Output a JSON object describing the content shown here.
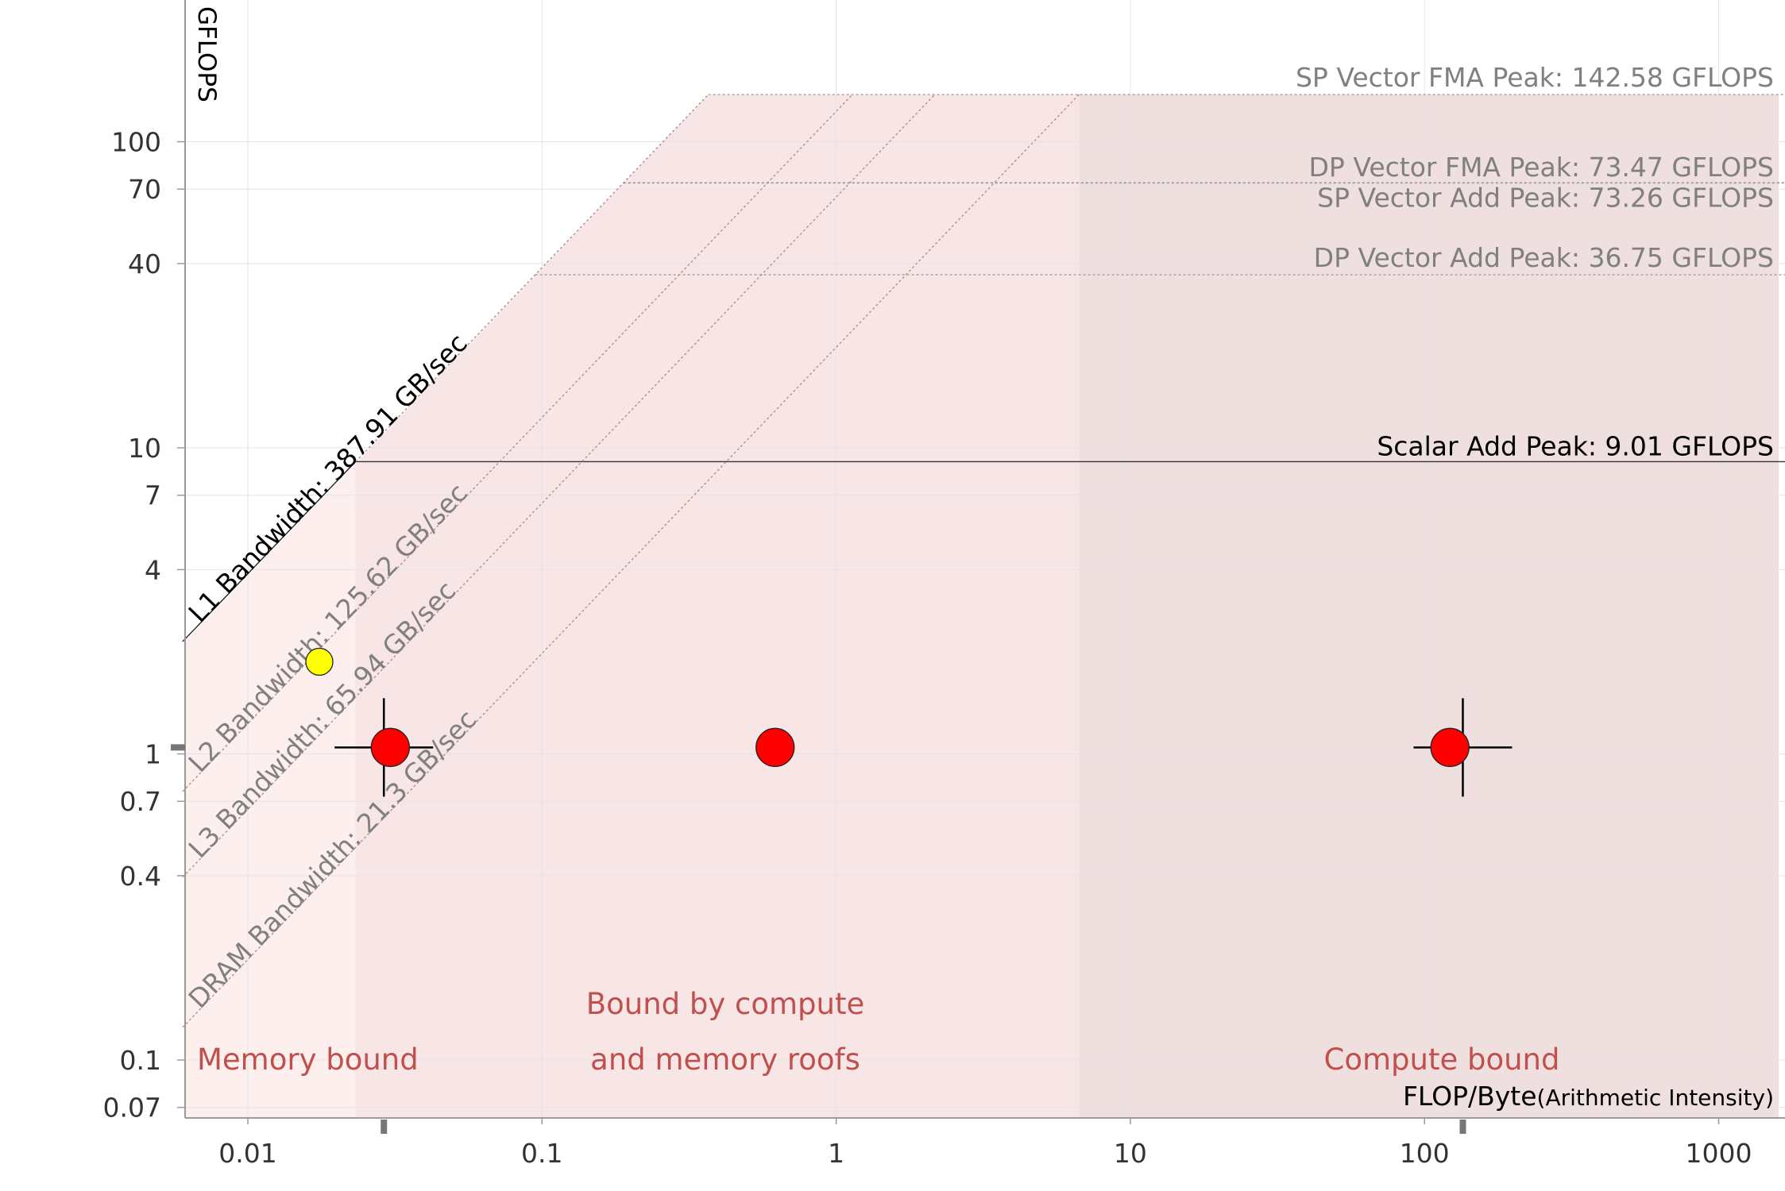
{
  "chart_data": {
    "type": "scatter",
    "subtype": "roofline",
    "xlabel": "FLOP/Byte",
    "xlabel_suffix": "(Arithmetic Intensity)",
    "ylabel": "GFLOPS",
    "x_scale": "log",
    "y_scale": "log",
    "xlim": [
      0.006,
      1600
    ],
    "ylim": [
      0.065,
      800
    ],
    "x_ticks": [
      {
        "value": 0.01,
        "label": "0.01"
      },
      {
        "value": 0.1,
        "label": "0.1"
      },
      {
        "value": 1,
        "label": "1"
      },
      {
        "value": 10,
        "label": "10"
      },
      {
        "value": 100,
        "label": "100"
      },
      {
        "value": 1000,
        "label": "1000"
      }
    ],
    "y_ticks": [
      {
        "value": 0.07,
        "label": "0.07"
      },
      {
        "value": 0.1,
        "label": "0.1"
      },
      {
        "value": 0.4,
        "label": "0.4"
      },
      {
        "value": 0.7,
        "label": "0.7"
      },
      {
        "value": 1,
        "label": "1"
      },
      {
        "value": 4,
        "label": "4"
      },
      {
        "value": 7,
        "label": "7"
      },
      {
        "value": 10,
        "label": "10"
      },
      {
        "value": 40,
        "label": "40"
      },
      {
        "value": 70,
        "label": "70"
      },
      {
        "value": 100,
        "label": "100"
      }
    ],
    "grid": true,
    "compute_roofs": [
      {
        "label": "SP Vector FMA Peak: 142.58 GFLOPS",
        "gflops": 142.58,
        "style": "dotted",
        "color": "#888888"
      },
      {
        "label": "DP Vector FMA Peak: 73.47 GFLOPS",
        "gflops": 73.47,
        "style": "dotted",
        "color": "#888888"
      },
      {
        "label": "SP Vector Add Peak: 73.26 GFLOPS",
        "gflops": 73.26,
        "style": "dotted",
        "color": "#888888"
      },
      {
        "label": "DP Vector Add Peak: 36.75 GFLOPS",
        "gflops": 36.75,
        "style": "dotted",
        "color": "#888888"
      },
      {
        "label": "Scalar Add Peak: 9.01 GFLOPS",
        "gflops": 9.01,
        "style": "solid",
        "color": "#000000"
      }
    ],
    "memory_roofs": [
      {
        "label": "L1 Bandwidth: 387.91 GB/sec",
        "gbps": 387.91,
        "style": "solid",
        "color": "#000000"
      },
      {
        "label": "L2 Bandwidth: 125.62 GB/sec",
        "gbps": 125.62,
        "style": "dotted",
        "color": "#888888"
      },
      {
        "label": "L3 Bandwidth: 65.94 GB/sec",
        "gbps": 65.94,
        "style": "dotted",
        "color": "#888888"
      },
      {
        "label": "DRAM Bandwidth: 21.3 GB/sec",
        "gbps": 21.3,
        "style": "dotted",
        "color": "#888888"
      }
    ],
    "regions": [
      {
        "label": "Memory bound",
        "x_from": 0.006,
        "x_to": 0.0232,
        "color": "#fcefee"
      },
      {
        "label_lines": [
          "Bound by compute",
          "and memory roofs"
        ],
        "x_from": 0.0232,
        "x_to": 6.69,
        "color": "#f8e6e6"
      },
      {
        "label": "Compute bound",
        "x_from": 6.69,
        "x_to": 1600,
        "color": "#f0dfdf"
      }
    ],
    "points": [
      {
        "x": 0.0305,
        "y": 1.05,
        "color": "#ff0000",
        "size": "large"
      },
      {
        "x": 0.62,
        "y": 1.05,
        "color": "#ff0000",
        "size": "large"
      },
      {
        "x": 122,
        "y": 1.05,
        "color": "#ff0000",
        "size": "large"
      },
      {
        "x": 0.0175,
        "y": 2.0,
        "color": "#ffff00",
        "size": "small"
      }
    ],
    "crosshairs": [
      {
        "x": 0.029,
        "y": 1.05
      },
      {
        "x": 135,
        "y": 1.05
      }
    ],
    "axis_markers": {
      "x": [
        0.029,
        135
      ],
      "y": [
        1.05
      ]
    }
  }
}
